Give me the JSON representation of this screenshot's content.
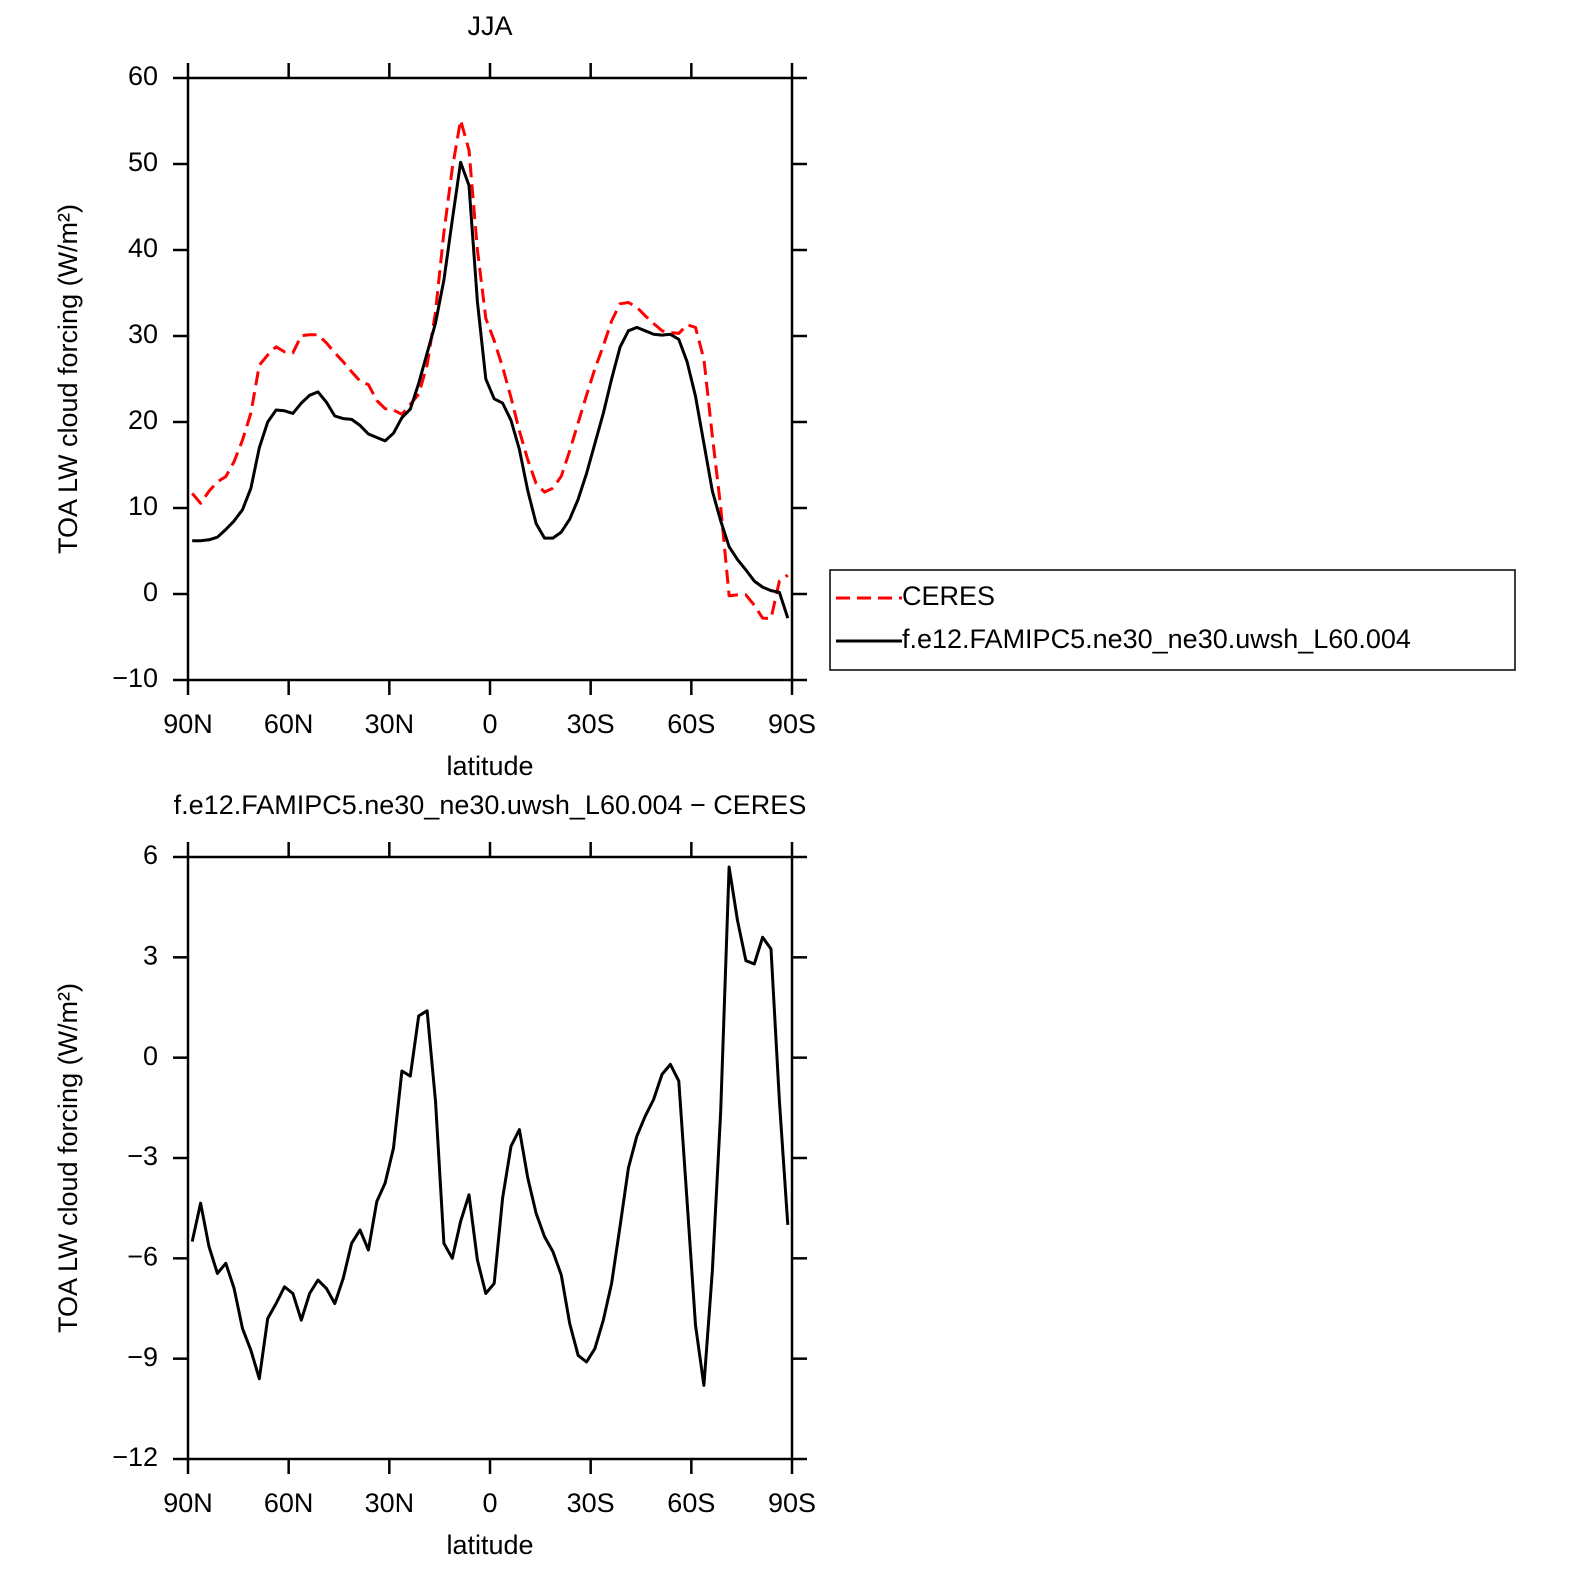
{
  "chart_data": [
    {
      "type": "line",
      "title": "JJA",
      "xlabel": "latitude",
      "ylabel": "TOA LW cloud forcing (W/m²)",
      "x": [
        88.75,
        86.25,
        83.75,
        81.25,
        78.75,
        76.25,
        73.75,
        71.25,
        68.75,
        66.25,
        63.75,
        61.25,
        58.75,
        56.25,
        53.75,
        51.25,
        48.75,
        46.25,
        43.75,
        41.25,
        38.75,
        36.25,
        33.75,
        31.25,
        28.75,
        26.25,
        23.75,
        21.25,
        18.75,
        16.25,
        13.75,
        11.25,
        8.75,
        6.25,
        3.75,
        1.25,
        -1.25,
        -3.75,
        -6.25,
        -8.75,
        -11.25,
        -13.75,
        -16.25,
        -18.75,
        -21.25,
        -23.75,
        -26.25,
        -28.75,
        -31.25,
        -33.75,
        -36.25,
        -38.75,
        -41.25,
        -43.75,
        -46.25,
        -48.75,
        -51.25,
        -53.75,
        -56.25,
        -58.75,
        -61.25,
        -63.75,
        -66.25,
        -68.75,
        -71.25,
        -73.75,
        -76.25,
        -78.75,
        -81.25,
        -83.75,
        -86.25,
        -88.75
      ],
      "series": [
        {
          "name": "CERES",
          "color": "#ff0000",
          "dash": true,
          "values": [
            11.7,
            10.55,
            11.95,
            13.05,
            13.65,
            15.4,
            17.9,
            21.05,
            26.6,
            27.8,
            28.75,
            28.15,
            28.05,
            30.05,
            30.15,
            30.15,
            29.2,
            28.05,
            27.0,
            25.85,
            24.75,
            24.35,
            22.5,
            21.55,
            21.4,
            20.9,
            22.05,
            23.25,
            26.6,
            32.8,
            42.05,
            49.5,
            55.1,
            51.6,
            40.05,
            32.05,
            29.45,
            26.4,
            22.85,
            18.95,
            15.6,
            12.85,
            11.85,
            12.3,
            13.7,
            16.65,
            19.9,
            23.1,
            26.2,
            28.85,
            31.75,
            33.75,
            33.9,
            33.35,
            32.35,
            31.45,
            30.6,
            30.4,
            30.3,
            31.3,
            31.0,
            27.3,
            18.4,
            10.1,
            -0.2,
            -0.1,
            -0.1,
            -1.3,
            -2.8,
            -2.85,
            1.5,
            2.2
          ]
        },
        {
          "name": "f.e12.FAMIPC5.ne30_ne30.uwsh_L60.004",
          "color": "#000000",
          "dash": false,
          "values": [
            6.2,
            6.2,
            6.3,
            6.6,
            7.5,
            8.5,
            9.8,
            12.3,
            17,
            20,
            21.4,
            21.3,
            21.0,
            22.2,
            23.1,
            23.5,
            22.3,
            20.7,
            20.4,
            20.3,
            19.6,
            18.6,
            18.2,
            17.8,
            18.7,
            20.5,
            21.5,
            24.5,
            28,
            31.5,
            36.5,
            43.5,
            50.2,
            47.5,
            34,
            25,
            22.7,
            22.2,
            20.2,
            16.8,
            12,
            8.2,
            6.5,
            6.5,
            7.2,
            8.7,
            11,
            14,
            17.5,
            21,
            25,
            28.7,
            30.6,
            31,
            30.6,
            30.2,
            30.1,
            30.2,
            29.6,
            27,
            23,
            17.5,
            12,
            8.5,
            5.5,
            4,
            2.8,
            1.5,
            0.8,
            0.4,
            0.2,
            -2.8
          ]
        }
      ],
      "xlim": [
        90,
        -90
      ],
      "xticks": [
        {
          "value": 90,
          "label": "90N"
        },
        {
          "value": 60,
          "label": "60N"
        },
        {
          "value": 30,
          "label": "30N"
        },
        0,
        {
          "value": -30,
          "label": "30S"
        },
        {
          "value": -60,
          "label": "60S"
        },
        {
          "value": -90,
          "label": "90S"
        }
      ],
      "ylim": [
        -10,
        60
      ],
      "yticks": [
        {
          "value": -10,
          "label": "−10"
        },
        0,
        10,
        20,
        30,
        40,
        50,
        60
      ],
      "legend": "right"
    },
    {
      "type": "line",
      "title": "f.e12.FAMIPC5.ne30_ne30.uwsh_L60.004 − CERES",
      "xlabel": "latitude",
      "ylabel": "TOA LW cloud forcing (W/m²)",
      "x": [
        88.75,
        86.25,
        83.75,
        81.25,
        78.75,
        76.25,
        73.75,
        71.25,
        68.75,
        66.25,
        63.75,
        61.25,
        58.75,
        56.25,
        53.75,
        51.25,
        48.75,
        46.25,
        43.75,
        41.25,
        38.75,
        36.25,
        33.75,
        31.25,
        28.75,
        26.25,
        23.75,
        21.25,
        18.75,
        16.25,
        13.75,
        11.25,
        8.75,
        6.25,
        3.75,
        1.25,
        -1.25,
        -3.75,
        -6.25,
        -8.75,
        -11.25,
        -13.75,
        -16.25,
        -18.75,
        -21.25,
        -23.75,
        -26.25,
        -28.75,
        -31.25,
        -33.75,
        -36.25,
        -38.75,
        -41.25,
        -43.75,
        -46.25,
        -48.75,
        -51.25,
        -53.75,
        -56.25,
        -58.75,
        -61.25,
        -63.75,
        -66.25,
        -68.75,
        -71.25,
        -73.75,
        -76.25,
        -78.75,
        -81.25,
        -83.75,
        -86.25,
        -88.75
      ],
      "values": [
        -5.5,
        -4.35,
        -5.65,
        -6.45,
        -6.15,
        -6.9,
        -8.1,
        -8.75,
        -9.6,
        -7.8,
        -7.35,
        -6.85,
        -7.05,
        -7.85,
        -7.05,
        -6.65,
        -6.9,
        -7.35,
        -6.6,
        -5.55,
        -5.15,
        -5.75,
        -4.3,
        -3.75,
        -2.7,
        -0.4,
        -0.55,
        1.25,
        1.4,
        -1.3,
        -5.55,
        -6.0,
        -4.9,
        -4.1,
        -6.05,
        -7.05,
        -6.75,
        -4.2,
        -2.65,
        -2.15,
        -3.6,
        -4.65,
        -5.35,
        -5.8,
        -6.5,
        -7.95,
        -8.9,
        -9.1,
        -8.7,
        -7.85,
        -6.75,
        -5.05,
        -3.3,
        -2.35,
        -1.75,
        -1.25,
        -0.5,
        -0.2,
        -0.7,
        -4.3,
        -8.0,
        -9.8,
        -6.4,
        -1.6,
        5.7,
        4.1,
        2.9,
        2.8,
        3.6,
        3.25,
        -1.3,
        -5.0
      ],
      "color": "#000000",
      "xlim": [
        90,
        -90
      ],
      "xticks": [
        {
          "value": 90,
          "label": "90N"
        },
        {
          "value": 60,
          "label": "60N"
        },
        {
          "value": 30,
          "label": "30N"
        },
        0,
        {
          "value": -30,
          "label": "30S"
        },
        {
          "value": -60,
          "label": "60S"
        },
        {
          "value": -90,
          "label": "90S"
        }
      ],
      "ylim": [
        -12,
        6
      ],
      "yticks": [
        {
          "value": -12,
          "label": "−12"
        },
        {
          "value": -9,
          "label": "−9"
        },
        {
          "value": -6,
          "label": "−6"
        },
        {
          "value": -3,
          "label": "−3"
        },
        0,
        3,
        6
      ]
    }
  ]
}
